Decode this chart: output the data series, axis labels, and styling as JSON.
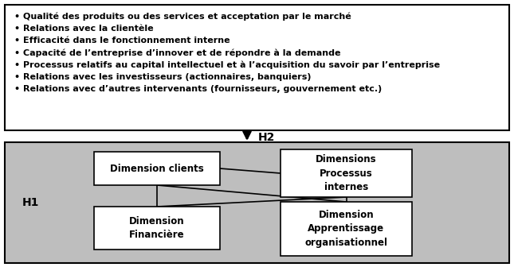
{
  "bullet_items": [
    "• Qualité des produits ou des services et acceptation par le marché",
    "• Relations avec la clientèle",
    "• Efficacité dans le fonctionnement interne",
    "• Capacité de l’entreprise d’innover et de répondre à la demande",
    "• Processus relatifs au capital intellectuel et à l’acquisition du savoir par l’entreprise",
    "• Relations avec les investisseurs (actionnaires, banquiers)",
    "• Relations avec d’autres intervenants (fournisseurs, gouvernement etc.)"
  ],
  "top_box_bg": "#ffffff",
  "top_box_border": "#000000",
  "bottom_box_bg": "#bebebe",
  "bottom_box_border": "#000000",
  "inner_box_bg": "#ffffff",
  "inner_box_border": "#000000",
  "arrow_color": "#000000",
  "h1_label": "H1",
  "h2_label": "H2",
  "box_labels": [
    "Dimension clients",
    "Dimensions\nProcessus\ninternes",
    "Dimension\nFinancière",
    "Dimension\nApprentissage\norganisationnel"
  ],
  "text_color": "#000000",
  "font_size_bullets": 8.0,
  "font_size_boxes": 8.5,
  "font_size_h1": 10,
  "font_size_h2": 10
}
